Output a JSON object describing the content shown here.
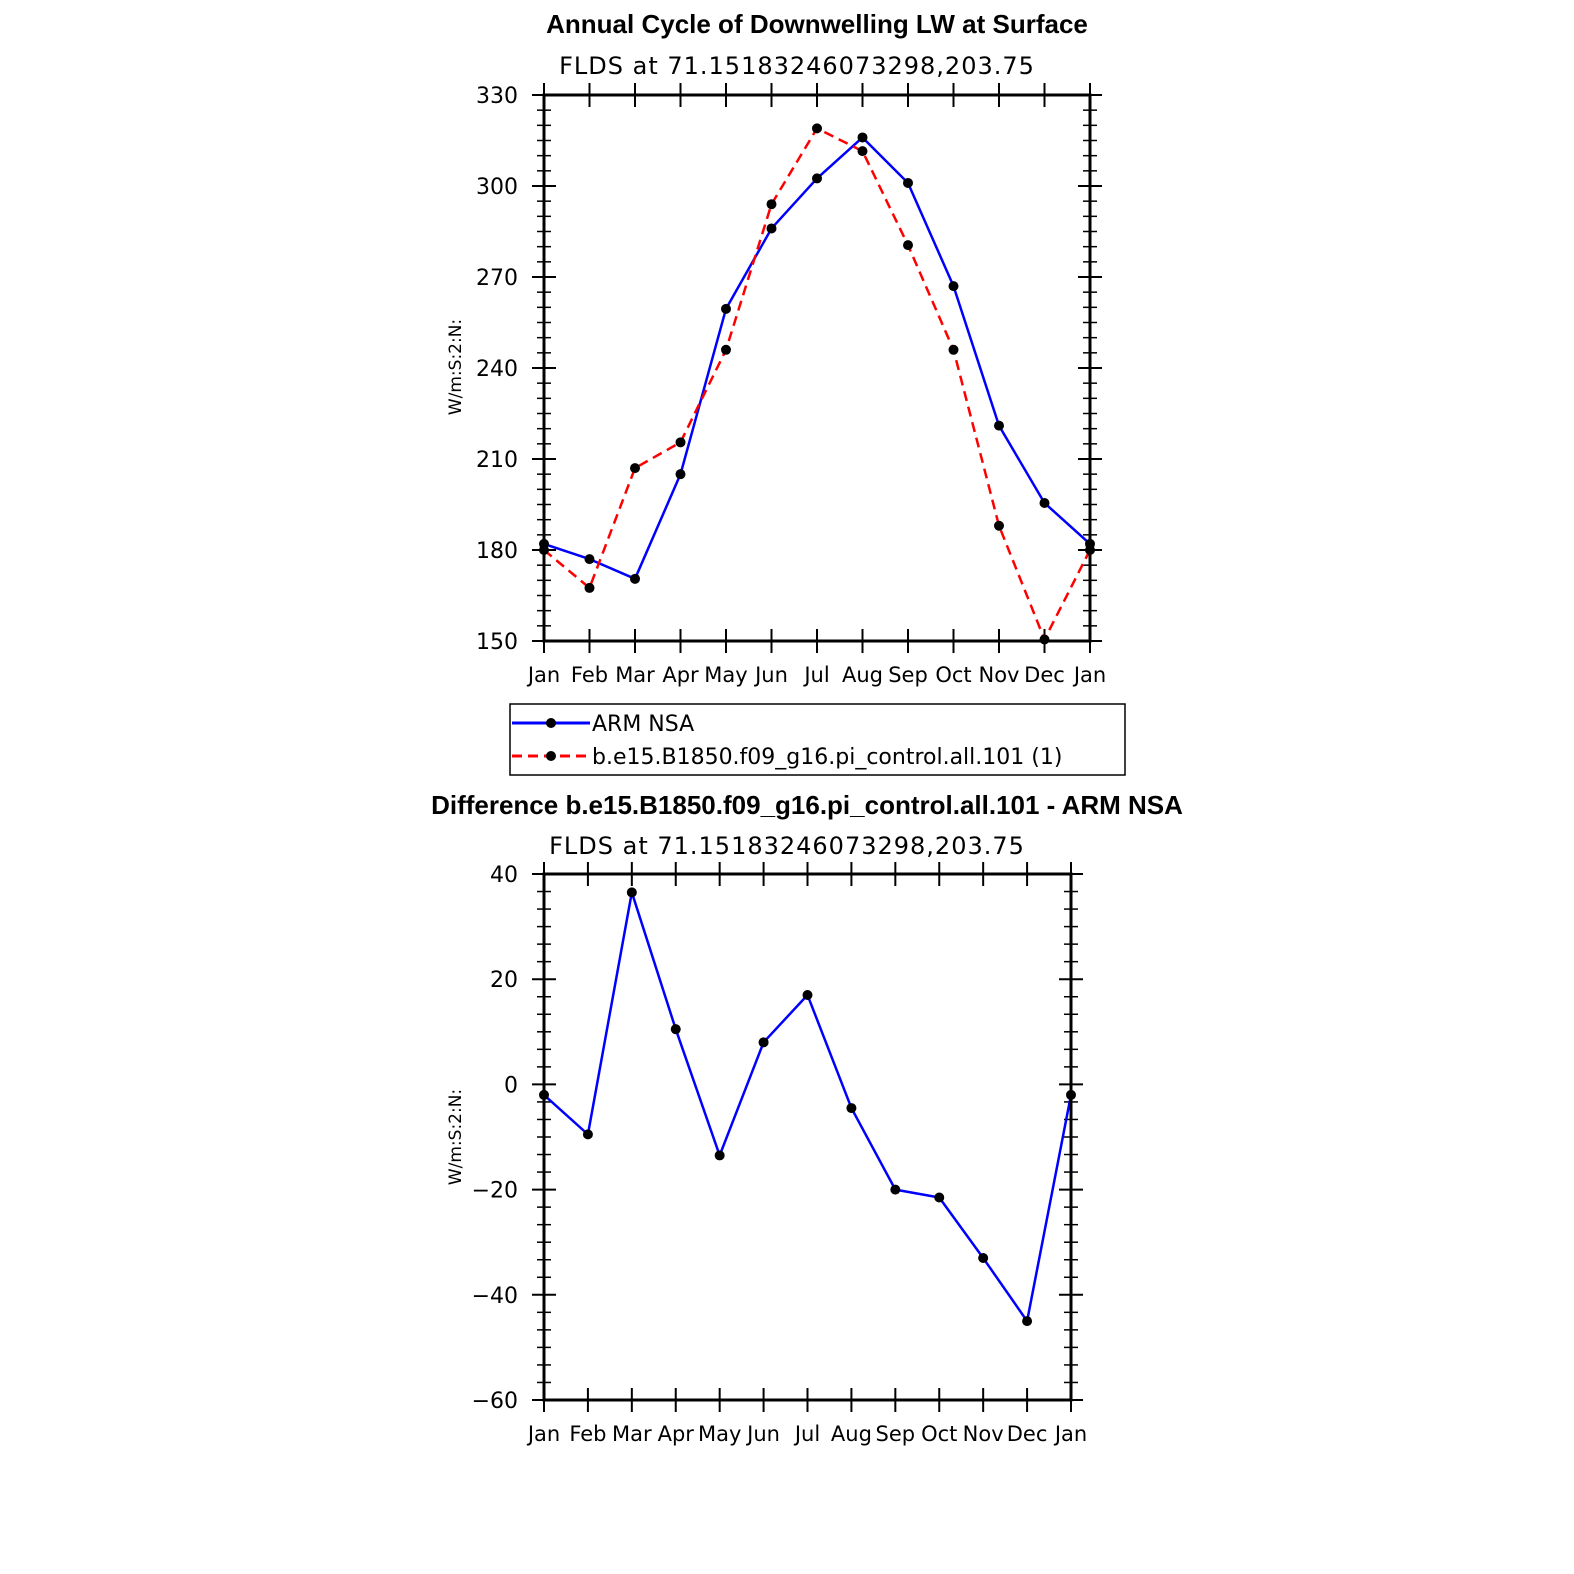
{
  "chart_data": [
    {
      "type": "line",
      "title": "Annual Cycle of Downwelling LW at Surface",
      "subtitle": "FLDS at 71.15183246073298,203.75",
      "xlabel": "",
      "ylabel": "W/m:S:2:N:",
      "categories": [
        "Jan",
        "Feb",
        "Mar",
        "Apr",
        "May",
        "Jun",
        "Jul",
        "Aug",
        "Sep",
        "Oct",
        "Nov",
        "Dec",
        "Jan"
      ],
      "ylim": [
        150,
        330
      ],
      "yticks": [
        "150",
        "180",
        "210",
        "240",
        "270",
        "300",
        "330"
      ],
      "grid": false,
      "legend": "bottom",
      "series": [
        {
          "name": "ARM NSA",
          "color": "#0000ff",
          "dash": "solid",
          "values": [
            182,
            177,
            170.5,
            205,
            259.5,
            286,
            302.5,
            316,
            301,
            267,
            221,
            195.5,
            182
          ]
        },
        {
          "name": "b.e15.B1850.f09_g16.pi_control.all.101 (1)",
          "color": "#ff0000",
          "dash": "dashed",
          "values": [
            180,
            167.5,
            207,
            215.5,
            246,
            294,
            319,
            311.5,
            280.5,
            246,
            188,
            150.5,
            180
          ]
        }
      ]
    },
    {
      "type": "line",
      "title": "Difference b.e15.B1850.f09_g16.pi_control.all.101 - ARM NSA",
      "subtitle": "FLDS at 71.15183246073298,203.75",
      "xlabel": "",
      "ylabel": "W/m:S:2:N:",
      "categories": [
        "Jan",
        "Feb",
        "Mar",
        "Apr",
        "May",
        "Jun",
        "Jul",
        "Aug",
        "Sep",
        "Oct",
        "Nov",
        "Dec",
        "Jan"
      ],
      "ylim": [
        -60,
        40
      ],
      "yticks": [
        "−60",
        "−40",
        "−20",
        "0",
        "20",
        "40"
      ],
      "grid": false,
      "series": [
        {
          "color": "#0000ff",
          "dash": "solid",
          "values": [
            -2,
            -9.5,
            36.5,
            10.5,
            -13.5,
            8,
            17,
            -4.5,
            -20,
            -21.5,
            -33,
            -45,
            -2
          ]
        }
      ]
    }
  ]
}
